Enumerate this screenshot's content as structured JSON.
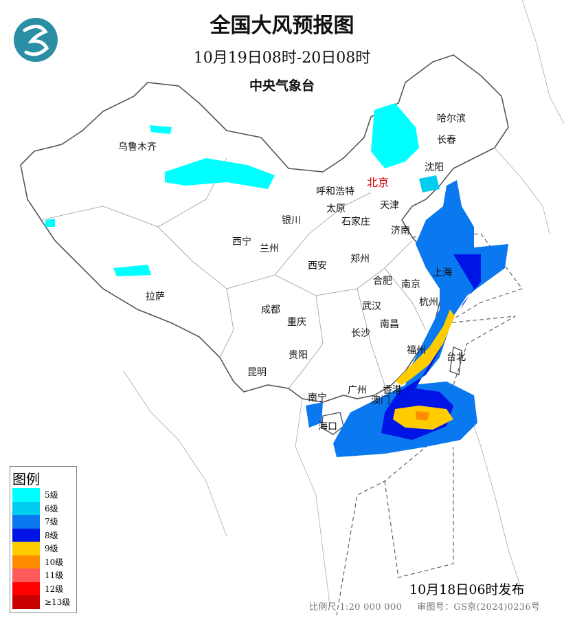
{
  "header": {
    "title": "全国大风预报图",
    "period": "10月19日08时-20日08时",
    "agency": "中央气象台"
  },
  "logo": {
    "icon": "cma-logo-icon",
    "color": "#2a8fa5"
  },
  "cities": [
    {
      "name": "哈尔滨"
    },
    {
      "name": "长春"
    },
    {
      "name": "沈阳"
    },
    {
      "name": "乌鲁木齐"
    },
    {
      "name": "北京",
      "capital": true
    },
    {
      "name": "呼和浩特"
    },
    {
      "name": "天津"
    },
    {
      "name": "太原"
    },
    {
      "name": "石家庄"
    },
    {
      "name": "银川"
    },
    {
      "name": "济南"
    },
    {
      "name": "西宁"
    },
    {
      "name": "兰州"
    },
    {
      "name": "郑州"
    },
    {
      "name": "西安"
    },
    {
      "name": "合肥"
    },
    {
      "name": "南京"
    },
    {
      "name": "上海"
    },
    {
      "name": "拉萨"
    },
    {
      "name": "成都"
    },
    {
      "name": "武汉"
    },
    {
      "name": "杭州"
    },
    {
      "name": "重庆"
    },
    {
      "name": "南昌"
    },
    {
      "name": "长沙"
    },
    {
      "name": "福州"
    },
    {
      "name": "台北"
    },
    {
      "name": "贵阳"
    },
    {
      "name": "昆明"
    },
    {
      "name": "广州"
    },
    {
      "name": "香港"
    },
    {
      "name": "南宁"
    },
    {
      "name": "澳门"
    },
    {
      "name": "海口"
    }
  ],
  "legend": {
    "title": "图例",
    "items": [
      {
        "label": "5级",
        "color": "#00ffff"
      },
      {
        "label": "6级",
        "color": "#00cdf0"
      },
      {
        "label": "7级",
        "color": "#0a78ee"
      },
      {
        "label": "8级",
        "color": "#0014e6"
      },
      {
        "label": "9级",
        "color": "#ffcc00"
      },
      {
        "label": "10级",
        "color": "#ff8c00"
      },
      {
        "label": "11级",
        "color": "#ff5a5a"
      },
      {
        "label": "12级",
        "color": "#ff0000"
      },
      {
        "label": "≥13级",
        "color": "#c80000"
      }
    ]
  },
  "issued": "10月18日06时发布",
  "footer": {
    "scale": "比例尺 1:20 000 000",
    "approval": "审图号：GS京(2024)0236号"
  }
}
